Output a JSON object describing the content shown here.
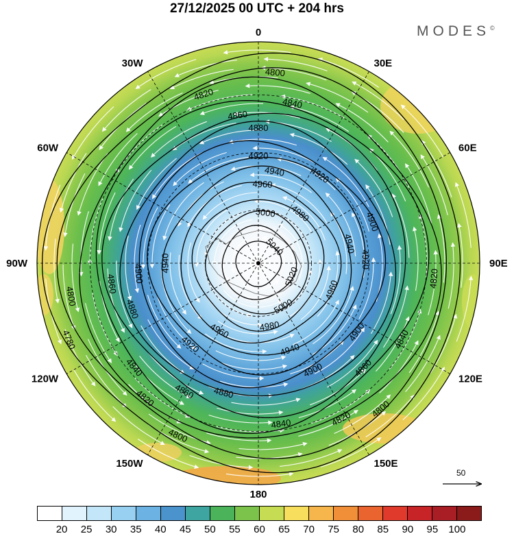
{
  "title": "27/12/2025  00 UTC  + 204 hrs",
  "brand": {
    "name": "MODES",
    "mark": "©"
  },
  "longitude_labels": [
    {
      "text": "0",
      "lon": 0
    },
    {
      "text": "30E",
      "lon": 30
    },
    {
      "text": "60E",
      "lon": 60
    },
    {
      "text": "90E",
      "lon": 90
    },
    {
      "text": "120E",
      "lon": 120
    },
    {
      "text": "150E",
      "lon": 150
    },
    {
      "text": "180",
      "lon": 180
    },
    {
      "text": "150W",
      "lon": -150
    },
    {
      "text": "120W",
      "lon": -120
    },
    {
      "text": "90W",
      "lon": -90
    },
    {
      "text": "60W",
      "lon": -60
    },
    {
      "text": "30W",
      "lon": -30
    }
  ],
  "reference_vector": {
    "label": "50"
  },
  "colorbar": {
    "colors": [
      "#ffffff",
      "#e1f3fc",
      "#c3e7f9",
      "#97d0f1",
      "#6cb2e2",
      "#4b93cc",
      "#3fa5a0",
      "#4bb45a",
      "#7cc34c",
      "#c6dc52",
      "#f7de5d",
      "#f6b64c",
      "#f18f38",
      "#ea6430",
      "#e03a2c",
      "#c62427",
      "#a91e25",
      "#8b1a1a"
    ],
    "labels": [
      "20",
      "25",
      "30",
      "35",
      "40",
      "45",
      "50",
      "55",
      "60",
      "65",
      "70",
      "75",
      "80",
      "85",
      "90",
      "95",
      "100"
    ]
  },
  "contours": [
    {
      "value": 4800,
      "label": "4800"
    },
    {
      "value": 4820,
      "label": "4820"
    },
    {
      "value": 4840,
      "label": "4840"
    },
    {
      "value": 4860,
      "label": "4860"
    },
    {
      "value": 4880,
      "label": "4880"
    },
    {
      "value": 4900,
      "label": "4900"
    },
    {
      "value": 4920,
      "label": "4920"
    },
    {
      "value": 4940,
      "label": "4940"
    },
    {
      "value": 4960,
      "label": "4960"
    },
    {
      "value": 4980,
      "label": "4980"
    },
    {
      "value": 5000,
      "label": "5000"
    },
    {
      "value": 5020,
      "label": "5020"
    },
    {
      "value": 5040,
      "label": "5040"
    },
    {
      "value": 4780,
      "label": "4780"
    }
  ]
}
